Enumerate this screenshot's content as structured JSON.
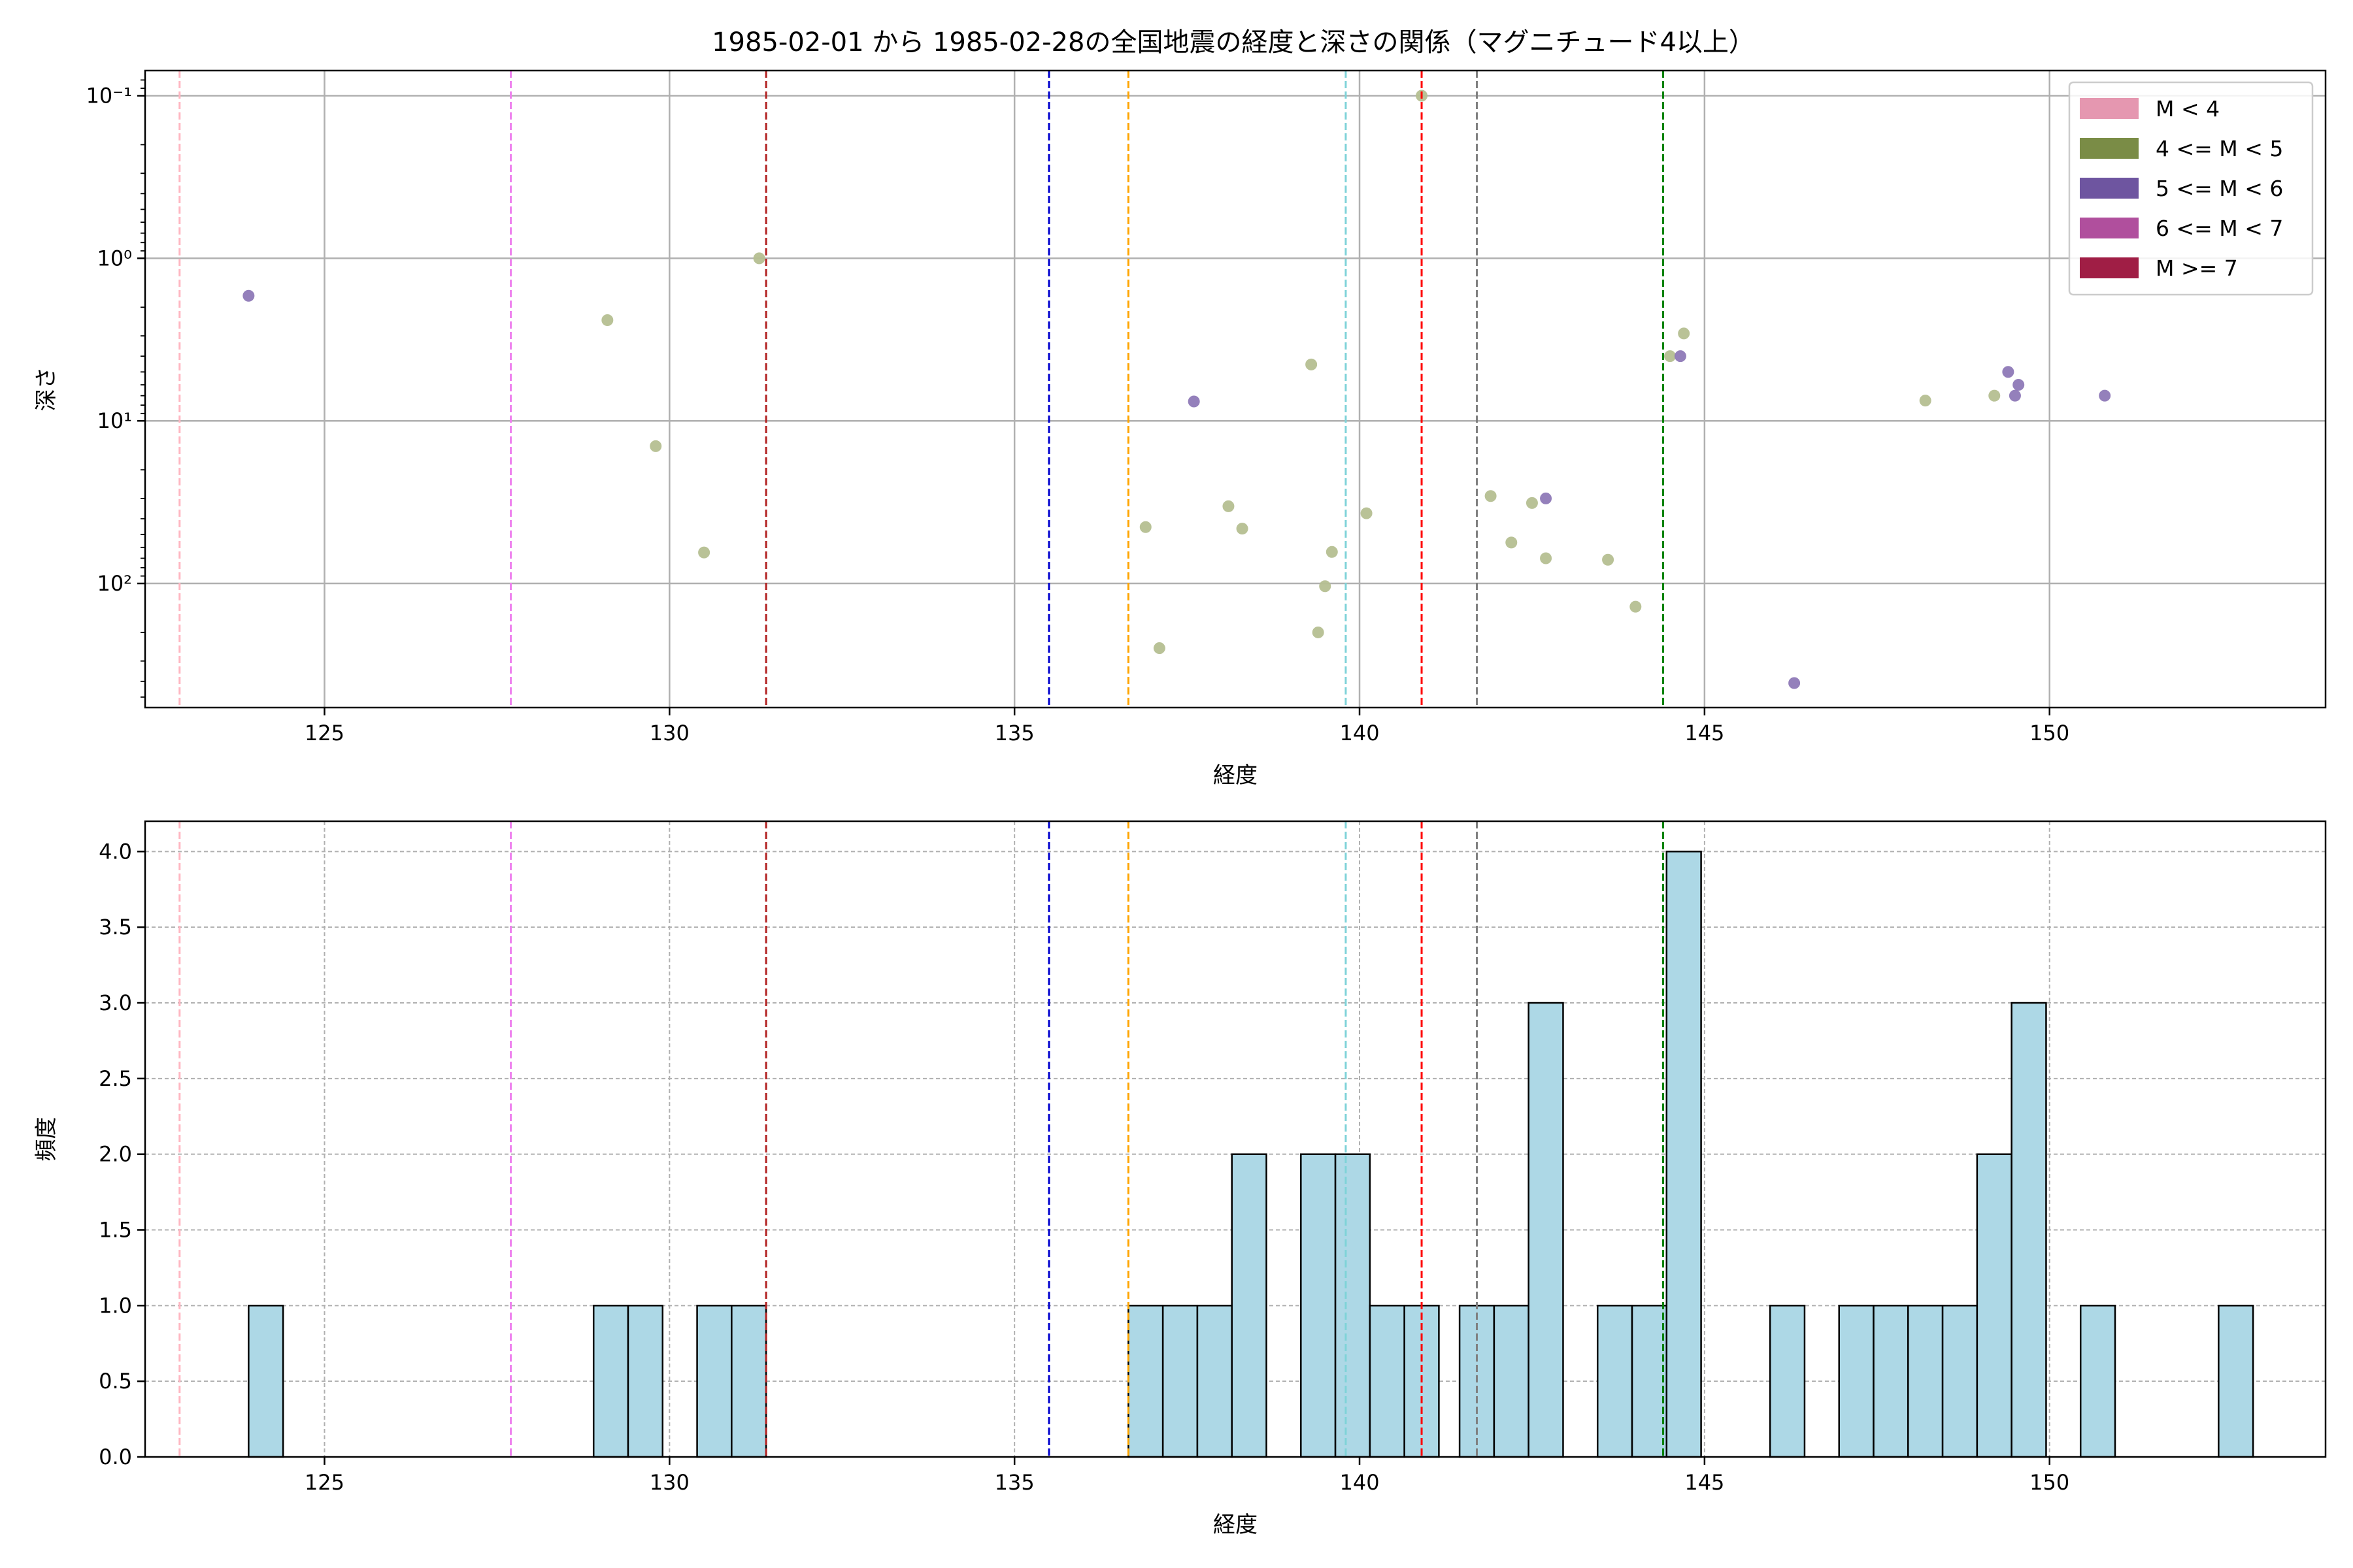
{
  "chart_data": [
    {
      "type": "scatter",
      "title": "1985-02-01 から 1985-02-28の全国地震の経度と深さの関係（マグニチュード4以上）",
      "xlabel": "経度",
      "ylabel": "深さ",
      "xlim": [
        122.4,
        154.0
      ],
      "ylim": [
        0.07,
        580
      ],
      "yscale": "log",
      "y_inverted": true,
      "xticks": [
        125,
        130,
        135,
        140,
        145,
        150
      ],
      "yticks": [
        {
          "value": 0.1,
          "label": "10⁻¹"
        },
        {
          "value": 1,
          "label": "10⁰"
        },
        {
          "value": 10,
          "label": "10¹"
        },
        {
          "value": 100,
          "label": "10²"
        }
      ],
      "grid": true,
      "legend": {
        "position": "top-right",
        "entries": [
          {
            "label": "M < 4",
            "color": "#e597b0"
          },
          {
            "label": "4 <= M < 5",
            "color": "#7a8c46"
          },
          {
            "label": "5 <= M < 6",
            "color": "#6e55a0"
          },
          {
            "label": "6 <= M < 7",
            "color": "#b04f9d"
          },
          {
            "label": "M >= 7",
            "color": "#a01e45"
          }
        ]
      },
      "series": [
        {
          "name": "4 <= M < 5",
          "color": "#b6bf92",
          "points": [
            [
              140.9,
              0.1
            ],
            [
              131.3,
              1.0
            ],
            [
              129.1,
              2.4
            ],
            [
              129.8,
              14.3
            ],
            [
              130.5,
              64.5
            ],
            [
              139.3,
              4.5
            ],
            [
              136.9,
              45
            ],
            [
              137.1,
              250
            ],
            [
              138.1,
              33.5
            ],
            [
              138.3,
              46
            ],
            [
              139.5,
              104
            ],
            [
              139.6,
              64
            ],
            [
              139.4,
              200
            ],
            [
              140.1,
              37
            ],
            [
              141.9,
              29
            ],
            [
              142.2,
              56
            ],
            [
              142.5,
              32
            ],
            [
              142.7,
              70
            ],
            [
              143.6,
              71.5
            ],
            [
              144.0,
              139
            ],
            [
              144.5,
              4.0
            ],
            [
              144.7,
              2.9
            ],
            [
              148.2,
              7.5
            ],
            [
              149.2,
              7.0
            ]
          ]
        },
        {
          "name": "5 <= M < 6",
          "color": "#8f7ab8",
          "points": [
            [
              123.9,
              1.7
            ],
            [
              137.6,
              7.6
            ],
            [
              142.7,
              30
            ],
            [
              144.65,
              4.0
            ],
            [
              146.3,
              410
            ],
            [
              149.4,
              5.0
            ],
            [
              149.5,
              7.0
            ],
            [
              149.55,
              6.0
            ],
            [
              150.8,
              7.0
            ]
          ]
        }
      ],
      "vlines": [
        {
          "x": 122.9,
          "color": "#ffb6c1"
        },
        {
          "x": 127.7,
          "color": "#ee82ee"
        },
        {
          "x": 131.4,
          "color": "#b22222"
        },
        {
          "x": 135.5,
          "color": "#0000cd"
        },
        {
          "x": 136.65,
          "color": "#ffa500"
        },
        {
          "x": 139.8,
          "color": "#7fd3d8"
        },
        {
          "x": 140.9,
          "color": "#ff0000"
        },
        {
          "x": 141.7,
          "color": "#808080"
        },
        {
          "x": 144.4,
          "color": "#008000"
        }
      ]
    },
    {
      "type": "bar",
      "xlabel": "経度",
      "ylabel": "頻度",
      "xlim": [
        122.4,
        154.0
      ],
      "ylim": [
        0,
        4.2
      ],
      "xticks": [
        125,
        130,
        135,
        140,
        145,
        150
      ],
      "yticks": [
        0.0,
        0.5,
        1.0,
        1.5,
        2.0,
        2.5,
        3.0,
        3.5,
        4.0
      ],
      "grid": true,
      "bar_color": "#add8e6",
      "bin_width": 0.5,
      "bins": [
        {
          "start": 123.9,
          "count": 1
        },
        {
          "start": 128.9,
          "count": 1
        },
        {
          "start": 129.4,
          "count": 1
        },
        {
          "start": 130.4,
          "count": 1
        },
        {
          "start": 130.9,
          "count": 1
        },
        {
          "start": 136.65,
          "count": 1
        },
        {
          "start": 137.15,
          "count": 1
        },
        {
          "start": 137.65,
          "count": 1
        },
        {
          "start": 138.15,
          "count": 2
        },
        {
          "start": 139.15,
          "count": 2
        },
        {
          "start": 139.65,
          "count": 2
        },
        {
          "start": 140.15,
          "count": 1
        },
        {
          "start": 140.65,
          "count": 1
        },
        {
          "start": 141.45,
          "count": 1
        },
        {
          "start": 141.95,
          "count": 1
        },
        {
          "start": 142.45,
          "count": 3
        },
        {
          "start": 143.45,
          "count": 1
        },
        {
          "start": 143.95,
          "count": 1
        },
        {
          "start": 144.45,
          "count": 4
        },
        {
          "start": 145.95,
          "count": 1
        },
        {
          "start": 146.95,
          "count": 1
        },
        {
          "start": 147.45,
          "count": 1
        },
        {
          "start": 147.95,
          "count": 1
        },
        {
          "start": 148.45,
          "count": 1
        },
        {
          "start": 148.95,
          "count": 2
        },
        {
          "start": 149.45,
          "count": 3
        },
        {
          "start": 150.45,
          "count": 1
        },
        {
          "start": 152.45,
          "count": 1
        }
      ],
      "vlines": [
        {
          "x": 122.9,
          "color": "#ffb6c1"
        },
        {
          "x": 127.7,
          "color": "#ee82ee"
        },
        {
          "x": 131.4,
          "color": "#b22222"
        },
        {
          "x": 135.5,
          "color": "#0000cd"
        },
        {
          "x": 136.65,
          "color": "#ffa500"
        },
        {
          "x": 139.8,
          "color": "#7fd3d8"
        },
        {
          "x": 140.9,
          "color": "#ff0000"
        },
        {
          "x": 141.7,
          "color": "#808080"
        },
        {
          "x": 144.4,
          "color": "#008000"
        }
      ]
    }
  ]
}
